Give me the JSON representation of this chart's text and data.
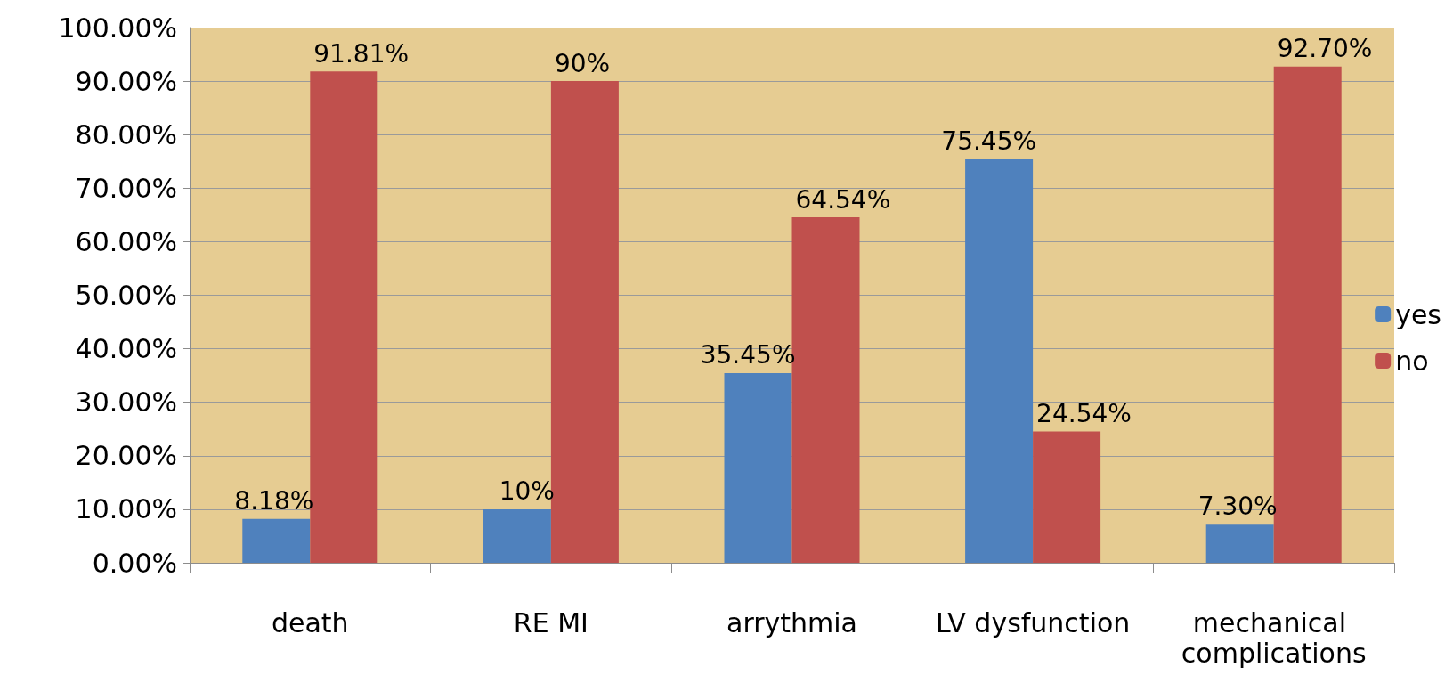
{
  "chart_data": {
    "type": "bar",
    "categories": [
      "death",
      "RE MI",
      "arrythmia",
      "LV dysfunction",
      "mechanical complications"
    ],
    "series": [
      {
        "name": "yes",
        "color": "#4f81bd",
        "values": [
          8.18,
          10,
          35.45,
          75.45,
          7.3
        ],
        "value_labels": [
          "8.18%",
          "10%",
          "35.45%",
          "75.45%",
          "7.30%"
        ]
      },
      {
        "name": "no",
        "color": "#c0504d",
        "values": [
          91.81,
          90,
          64.54,
          24.54,
          92.7
        ],
        "value_labels": [
          "91.81%",
          "90%",
          "64.54%",
          "24.54%",
          "92.70%"
        ]
      }
    ],
    "ylim": [
      0,
      100
    ],
    "yticks": [
      {
        "value": 0,
        "label": "0.00%"
      },
      {
        "value": 10,
        "label": "10.00%"
      },
      {
        "value": 20,
        "label": "20.00%"
      },
      {
        "value": 30,
        "label": "30.00%"
      },
      {
        "value": 40,
        "label": "40.00%"
      },
      {
        "value": 50,
        "label": "50.00%"
      },
      {
        "value": 60,
        "label": "60.00%"
      },
      {
        "value": 70,
        "label": "70.00%"
      },
      {
        "value": 80,
        "label": "80.00%"
      },
      {
        "value": 90,
        "label": "90.00%"
      },
      {
        "value": 100,
        "label": "100.00%"
      }
    ],
    "grid": "y",
    "legend": "right"
  }
}
